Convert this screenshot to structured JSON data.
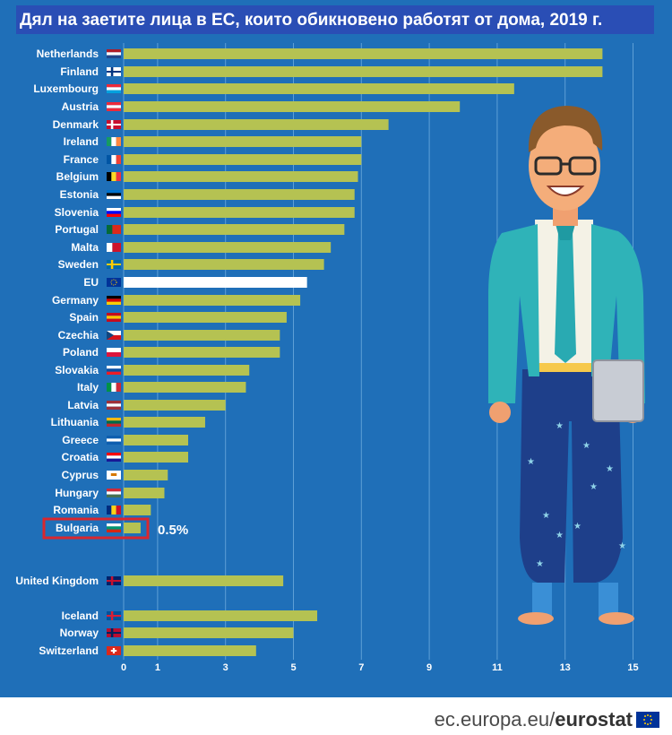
{
  "title": "Дял на заетите лица в ЕС, които обикновено работят от дома, 2019 г.",
  "footer": {
    "url_prefix": "ec.europa.eu/",
    "brand": "eurostat"
  },
  "colors": {
    "bar": "#b5c252",
    "eu_bar": "#ffffff",
    "background": "#1f6fb8",
    "highlight": "#d9272e"
  },
  "chart_data": {
    "type": "bar",
    "orientation": "horizontal",
    "title": "Дял на заетите лица в ЕС, които обикновено работят от дома, 2019 г.",
    "xlim": [
      0,
      15
    ],
    "x_ticks": [
      0,
      1,
      3,
      5,
      7,
      9,
      11,
      13,
      15
    ],
    "grid": true,
    "highlight": {
      "category": "Bulgaria",
      "label": "0.5%"
    },
    "categories": [
      "Netherlands",
      "Finland",
      "Luxembourg",
      "Austria",
      "Denmark",
      "Ireland",
      "France",
      "Belgium",
      "Estonia",
      "Slovenia",
      "Portugal",
      "Malta",
      "Sweden",
      "EU",
      "Germany",
      "Spain",
      "Czechia",
      "Poland",
      "Slovakia",
      "Italy",
      "Latvia",
      "Lithuania",
      "Greece",
      "Croatia",
      "Cyprus",
      "Hungary",
      "Romania",
      "Bulgaria",
      "United Kingdom",
      "Iceland",
      "Norway",
      "Switzerland"
    ],
    "values": [
      14.1,
      14.1,
      11.5,
      9.9,
      7.8,
      7.0,
      7.0,
      6.9,
      6.8,
      6.8,
      6.5,
      6.1,
      5.9,
      5.4,
      5.2,
      4.8,
      4.6,
      4.6,
      3.7,
      3.6,
      3.0,
      2.4,
      1.9,
      1.9,
      1.3,
      1.2,
      0.8,
      0.5,
      4.7,
      5.7,
      5.0,
      3.9
    ],
    "flags": [
      "nl",
      "fi",
      "lu",
      "at",
      "dk",
      "ie",
      "fr",
      "be",
      "ee",
      "si",
      "pt",
      "mt",
      "se",
      "eu",
      "de",
      "es",
      "cz",
      "pl",
      "sk",
      "it",
      "lv",
      "lt",
      "gr",
      "hr",
      "cy",
      "hu",
      "ro",
      "bg",
      "gb",
      "is",
      "no",
      "ch"
    ]
  }
}
